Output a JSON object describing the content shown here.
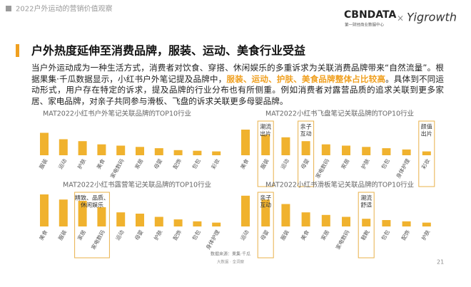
{
  "header": {
    "section": "2022户外运动的营销价值观察",
    "logo_main": "CBNDATA",
    "logo_sub": "第一财经商业数据中心",
    "logo_cross": "×",
    "logo_partner": "Yigrowth"
  },
  "title": "户外热度延伸至消费品牌，服装、运动、美食行业受益",
  "paragraph": {
    "before": "当户外运动成为一种生活方式，消费者对饮食、穿搭、休闲娱乐的多重诉求为关联消费品牌带来“自然流量”。根据果集·千瓜数据显示，小红书户外笔记提及品牌中，",
    "highlight": "服装、运动、护肤、美食品牌整体占比较高",
    "after": "。具体到不同运动形式，用户存在特定的诉求，提及品牌的行业分布也有所侧重。例如消费者对露营品质的追求关联到更多家居、家电品牌，对亲子共同参与滑板、飞盘的诉求关联更多母婴品牌。"
  },
  "chart_data": [
    {
      "type": "bar",
      "title": "MAT2022小红书户外笔记关联品牌的TOP10行业",
      "color": "#f0b22e",
      "categories": [
        "服装",
        "运动",
        "护肤",
        "美食",
        "家电数码",
        "家居",
        "母婴",
        "配饰",
        "包包",
        "彩妆"
      ],
      "values": [
        35,
        25,
        22,
        17,
        15,
        13,
        11,
        8,
        7,
        6
      ],
      "annotations": []
    },
    {
      "type": "bar",
      "title": "MAT2022小红书飞盘笔记关联品牌的TOP10行业",
      "color": "#f0b22e",
      "categories": [
        "美食",
        "服装",
        "运动",
        "母婴",
        "家电数码",
        "家居",
        "护肤",
        "包包",
        "身体护理",
        "彩妆"
      ],
      "values": [
        40,
        32,
        28,
        22,
        17,
        15,
        13,
        11,
        9,
        6
      ],
      "annotations": [
        {
          "lines": [
            "潮流",
            "出片"
          ]
        },
        {
          "lines": [
            "亲子",
            "互动"
          ]
        },
        {
          "lines": [
            "颜值",
            "出片"
          ]
        }
      ]
    },
    {
      "type": "bar",
      "title": "MAT2022小红书露营笔记关联品牌的TOP10行业",
      "color": "#f0b22e",
      "categories": [
        "美食",
        "服装",
        "家居",
        "家电数码",
        "运动",
        "母婴",
        "护肤",
        "配饰",
        "包包",
        "身体护理"
      ],
      "values": [
        50,
        42,
        40,
        30,
        22,
        20,
        15,
        11,
        8,
        6
      ],
      "annotations": [
        {
          "lines": [
            "精致、品质、",
            "休闲娱乐"
          ]
        }
      ]
    },
    {
      "type": "bar",
      "title": "MAT2022小红书滑板笔记关联品牌的TOP10行业",
      "color": "#f0b22e",
      "categories": [
        "运动",
        "母婴",
        "服装",
        "美食",
        "家居",
        "家电数码",
        "鞋靴",
        "包包",
        "配饰",
        "护肤"
      ],
      "values": [
        48,
        42,
        35,
        22,
        18,
        15,
        12,
        10,
        8,
        6
      ],
      "annotations": [
        {
          "lines": [
            "亲子",
            "互动"
          ]
        },
        {
          "lines": [
            "潮流",
            "舒适"
          ]
        }
      ]
    }
  ],
  "footer": {
    "source": "数据来源：果集·千瓜",
    "slogan": "大数据 · 全洞察",
    "page": "21"
  }
}
